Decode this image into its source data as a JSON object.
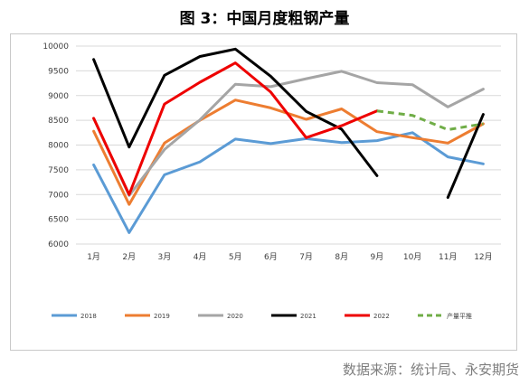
{
  "header": {
    "title": "图 3：中国月度粗钢产量"
  },
  "footer": {
    "source": "数据来源：统计局、永安期货"
  },
  "chart_data": {
    "type": "line",
    "categories": [
      "1月",
      "2月",
      "3月",
      "4月",
      "5月",
      "6月",
      "7月",
      "8月",
      "9月",
      "10月",
      "11月",
      "12月"
    ],
    "ylim": [
      6000,
      10000
    ],
    "yticks": [
      6000,
      6500,
      7000,
      7500,
      8000,
      8500,
      9000,
      9500,
      10000
    ],
    "grid": true,
    "legend_position": "bottom",
    "series": [
      {
        "name": "2018",
        "color": "#5b9bd5",
        "dashed": false,
        "values": [
          7600,
          6230,
          7400,
          7660,
          8120,
          8030,
          8130,
          8050,
          8090,
          8250,
          7760,
          7620
        ]
      },
      {
        "name": "2019",
        "color": "#ed7d31",
        "dashed": false,
        "values": [
          8280,
          6800,
          8040,
          8500,
          8910,
          8750,
          8520,
          8730,
          8270,
          8150,
          8040,
          8430
        ]
      },
      {
        "name": "2020",
        "color": "#a5a5a5",
        "dashed": false,
        "values": [
          8540,
          6980,
          7910,
          8510,
          9230,
          9180,
          9340,
          9490,
          9260,
          9220,
          8770,
          9130
        ]
      },
      {
        "name": "2021",
        "color": "#000000",
        "dashed": false,
        "values": [
          9730,
          7960,
          9410,
          9790,
          9940,
          9390,
          8680,
          8320,
          7380,
          null,
          6940,
          8620
        ]
      },
      {
        "name": "2022",
        "color": "#ee0000",
        "dashed": false,
        "values": [
          8540,
          7000,
          8830,
          9270,
          9660,
          9070,
          8150,
          8390,
          8690,
          null,
          null,
          null
        ]
      },
      {
        "name": "产量平推",
        "color": "#70ad47",
        "dashed": true,
        "values": [
          null,
          null,
          null,
          null,
          null,
          null,
          null,
          null,
          8690,
          8600,
          8310,
          8430
        ]
      }
    ]
  }
}
